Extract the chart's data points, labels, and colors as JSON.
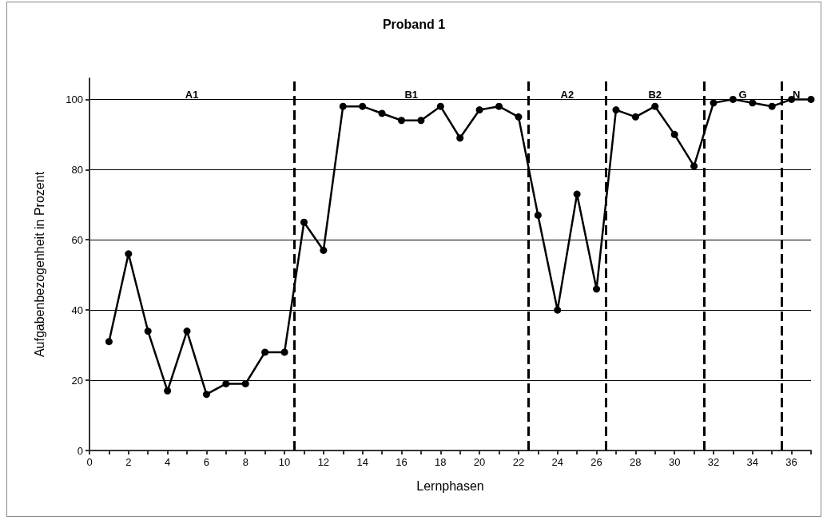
{
  "chart_data": {
    "type": "line",
    "title": "Proband 1",
    "xlabel": "Lernphasen",
    "ylabel": "Aufgabenbezogenheit in Prozent",
    "x": [
      1,
      2,
      3,
      4,
      5,
      6,
      7,
      8,
      9,
      10,
      11,
      12,
      13,
      14,
      15,
      16,
      17,
      18,
      19,
      20,
      21,
      22,
      23,
      24,
      25,
      26,
      27,
      28,
      29,
      30,
      31,
      32,
      33,
      34,
      35,
      36,
      37
    ],
    "series": [
      {
        "color": "#000000",
        "values": [
          31,
          56,
          34,
          17,
          34,
          16,
          19,
          19,
          28,
          28,
          65,
          57,
          98,
          98,
          96,
          94,
          94,
          98,
          89,
          97,
          98,
          95,
          67,
          40,
          73,
          46,
          97,
          95,
          98,
          90,
          81,
          99,
          100,
          99,
          98,
          100,
          100
        ]
      }
    ],
    "xlim": [
      0,
      37
    ],
    "xticks": [
      0,
      {
        "value": 1,
        "label": null
      },
      2,
      {
        "value": 3,
        "label": null
      },
      4,
      {
        "value": 5,
        "label": null
      },
      6,
      {
        "value": 7,
        "label": null
      },
      8,
      {
        "value": 9,
        "label": null
      },
      10,
      {
        "value": 11,
        "label": null
      },
      12,
      {
        "value": 13,
        "label": null
      },
      14,
      {
        "value": 15,
        "label": null
      },
      16,
      {
        "value": 17,
        "label": null
      },
      18,
      {
        "value": 19,
        "label": null
      },
      20,
      {
        "value": 21,
        "label": null
      },
      22,
      {
        "value": 23,
        "label": null
      },
      24,
      {
        "value": 25,
        "label": null
      },
      26,
      {
        "value": 27,
        "label": null
      },
      28,
      {
        "value": 29,
        "label": null
      },
      30,
      {
        "value": 31,
        "label": null
      },
      32,
      {
        "value": 33,
        "label": null
      },
      34,
      {
        "value": 35,
        "label": null
      },
      36,
      {
        "value": 37,
        "label": null
      }
    ],
    "ylim": [
      0,
      106
    ],
    "yticks": [
      0,
      20,
      40,
      60,
      80,
      100
    ],
    "grid": "y",
    "marker": "circle",
    "line_style": "solid",
    "ref_lines": [
      {
        "axis": "x",
        "value": 10.5,
        "line_style": "dashed",
        "color": "#000000"
      },
      {
        "axis": "x",
        "value": 22.5,
        "line_style": "dashed",
        "color": "#000000"
      },
      {
        "axis": "x",
        "value": 26.5,
        "line_style": "dashed",
        "color": "#000000"
      },
      {
        "axis": "x",
        "value": 31.5,
        "line_style": "dashed",
        "color": "#000000"
      },
      {
        "axis": "x",
        "value": 35.5,
        "line_style": "dashed",
        "color": "#000000"
      }
    ],
    "annotations": [
      "A1",
      "B1",
      "A2",
      "B2",
      "G",
      "N"
    ]
  }
}
